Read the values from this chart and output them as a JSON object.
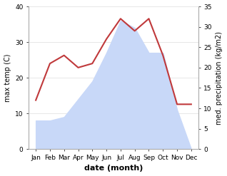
{
  "months": [
    "Jan",
    "Feb",
    "Mar",
    "Apr",
    "May",
    "Jun",
    "Jul",
    "Aug",
    "Sep",
    "Oct",
    "Nov",
    "Dec"
  ],
  "max_temp": [
    8,
    8,
    9,
    14,
    19,
    27,
    36,
    34,
    27,
    27,
    11,
    0
  ],
  "precipitation": [
    12,
    21,
    23,
    20,
    21,
    27,
    32,
    29,
    32,
    23,
    11,
    11
  ],
  "temp_fill_color": "#c8d8f8",
  "precip_color": "#c0393b",
  "left_ylim": [
    0,
    40
  ],
  "right_ylim": [
    0,
    35
  ],
  "left_yticks": [
    0,
    10,
    20,
    30,
    40
  ],
  "right_yticks": [
    0,
    5,
    10,
    15,
    20,
    25,
    30,
    35
  ],
  "left_ylabel": "max temp (C)",
  "right_ylabel": "med. precipitation (kg/m2)",
  "xlabel": "date (month)",
  "tick_fontsize": 6.5,
  "label_fontsize": 7,
  "xlabel_fontsize": 8
}
